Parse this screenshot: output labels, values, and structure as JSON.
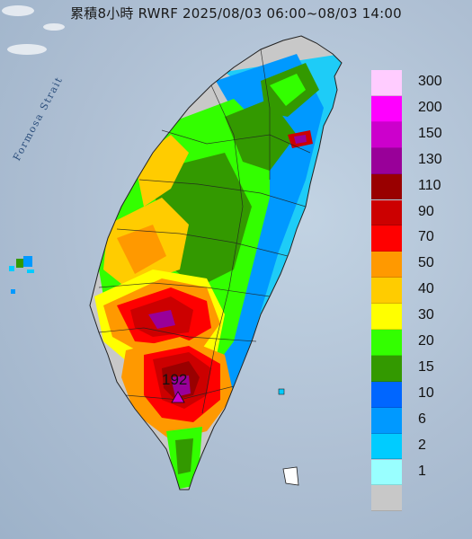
{
  "title": "累積8小時 RWRF 2025/08/03 06:00~08/03 14:00",
  "sea_label": "Formosa Strait",
  "peak_value": "192",
  "legend": [
    {
      "label": "300",
      "color": "#ffccff"
    },
    {
      "label": "200",
      "color": "#ff00ff"
    },
    {
      "label": "150",
      "color": "#cc00cc"
    },
    {
      "label": "130",
      "color": "#990099"
    },
    {
      "label": "110",
      "color": "#990000"
    },
    {
      "label": "90",
      "color": "#cc0000"
    },
    {
      "label": "70",
      "color": "#ff0000"
    },
    {
      "label": "50",
      "color": "#ff9900"
    },
    {
      "label": "40",
      "color": "#ffcc00"
    },
    {
      "label": "30",
      "color": "#ffff00"
    },
    {
      "label": "20",
      "color": "#33ff00"
    },
    {
      "label": "15",
      "color": "#339900"
    },
    {
      "label": "10",
      "color": "#0066ff"
    },
    {
      "label": "6",
      "color": "#0099ff"
    },
    {
      "label": "2",
      "color": "#00ccff"
    },
    {
      "label": "1",
      "color": "#99ffff"
    },
    {
      "label": "",
      "color": "#c8c8c8"
    }
  ],
  "colors": {
    "land_base": "#c8c8c8",
    "sea": "#aebfd3",
    "border": "#222222"
  }
}
